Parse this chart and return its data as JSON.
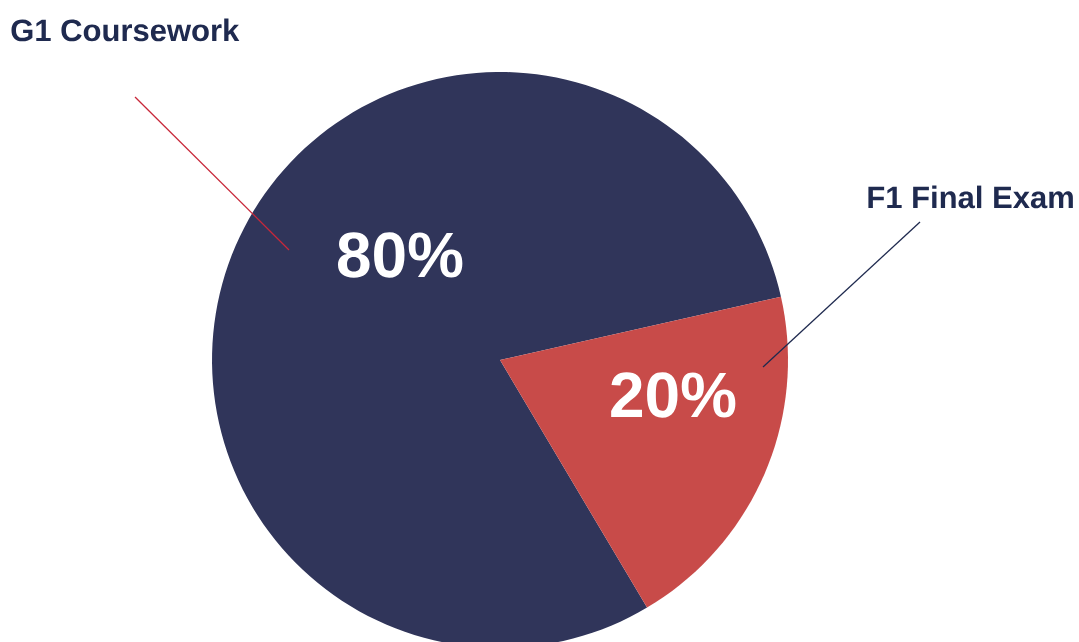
{
  "chart_data": {
    "type": "pie",
    "categories": [
      "G1 Coursework",
      "F1 Final Exam"
    ],
    "values": [
      80,
      20
    ],
    "colors": [
      "#30355a",
      "#c84b49"
    ],
    "value_labels": [
      "80%",
      "20%"
    ]
  }
}
